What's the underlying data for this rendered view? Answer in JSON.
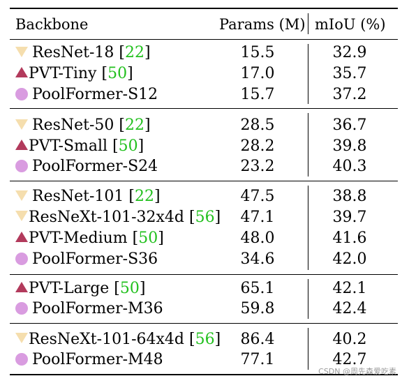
{
  "header": {
    "backbone": "Backbone",
    "params": "Params (M)",
    "miou": "mIoU (%)"
  },
  "groups": [
    [
      {
        "marker": "triangle-down-icon",
        "name": "ResNet-18",
        "cite": "22",
        "params": "15.5",
        "miou": "32.9"
      },
      {
        "marker": "triangle-up-icon",
        "name": "PVT-Tiny",
        "cite": "50",
        "params": "17.0",
        "miou": "35.7"
      },
      {
        "marker": "circle-icon",
        "name": "PoolFormer-S12",
        "cite": "",
        "params": "15.7",
        "miou": "37.2"
      }
    ],
    [
      {
        "marker": "triangle-down-icon",
        "name": "ResNet-50",
        "cite": "22",
        "params": "28.5",
        "miou": "36.7"
      },
      {
        "marker": "triangle-up-icon",
        "name": "PVT-Small",
        "cite": "50",
        "params": "28.2",
        "miou": "39.8"
      },
      {
        "marker": "circle-icon",
        "name": "PoolFormer-S24",
        "cite": "",
        "params": "23.2",
        "miou": "40.3"
      }
    ],
    [
      {
        "marker": "triangle-down-icon",
        "name": "ResNet-101",
        "cite": "22",
        "params": "47.5",
        "miou": "38.8"
      },
      {
        "marker": "triangle-down-icon",
        "name": "ResNeXt-101-32x4d",
        "cite": "56",
        "params": "47.1",
        "miou": "39.7"
      },
      {
        "marker": "triangle-up-icon",
        "name": "PVT-Medium",
        "cite": "50",
        "params": "48.0",
        "miou": "41.6"
      },
      {
        "marker": "circle-icon",
        "name": "PoolFormer-S36",
        "cite": "",
        "params": "34.6",
        "miou": "42.0"
      }
    ],
    [
      {
        "marker": "triangle-up-icon",
        "name": "PVT-Large",
        "cite": "50",
        "params": "65.1",
        "miou": "42.1"
      },
      {
        "marker": "circle-icon",
        "name": "PoolFormer-M36",
        "cite": "",
        "params": "59.8",
        "miou": "42.4"
      }
    ],
    [
      {
        "marker": "triangle-down-icon",
        "name": "ResNeXt-101-64x4d",
        "cite": "56",
        "params": "86.4",
        "miou": "40.2"
      },
      {
        "marker": "circle-icon",
        "name": "PoolFormer-M48",
        "cite": "",
        "params": "77.1",
        "miou": "42.7"
      }
    ]
  ],
  "colors": {
    "triangle_down": "#f5deae",
    "triangle_up": "#b23a5c",
    "circle": "#d99ce0",
    "citation": "#22c01e"
  },
  "watermark": "CSDN @周先森爱吃素"
}
